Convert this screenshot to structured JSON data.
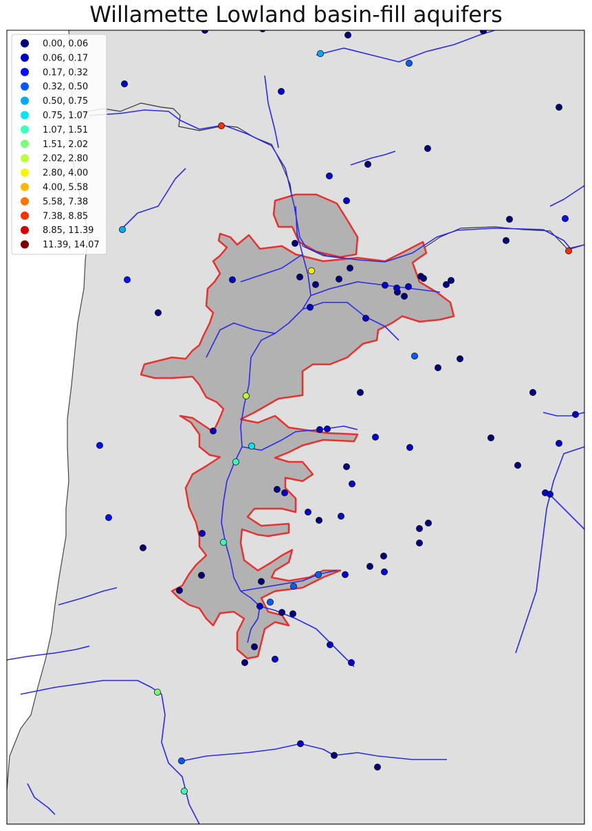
{
  "title": "Willamette Lowland basin-fill aquifers",
  "legend": {
    "bins": [
      {
        "label": "0.00,  0.06",
        "color": "#00007f"
      },
      {
        "label": "0.06,  0.17",
        "color": "#0000c8"
      },
      {
        "label": "0.17,  0.32",
        "color": "#0010ff"
      },
      {
        "label": "0.32,  0.50",
        "color": "#005cff"
      },
      {
        "label": "0.50,  0.75",
        "color": "#00a8ff"
      },
      {
        "label": "0.75,  1.07",
        "color": "#00e4f8"
      },
      {
        "label": "1.07,  1.51",
        "color": "#3cffba"
      },
      {
        "label": "1.51,  2.02",
        "color": "#7cff7a"
      },
      {
        "label": "2.02,  2.80",
        "color": "#baff3c"
      },
      {
        "label": "2.80,  4.00",
        "color": "#f8f500"
      },
      {
        "label": "4.00,  5.58",
        "color": "#ffb700"
      },
      {
        "label": "5.58,  7.38",
        "color": "#ff7300"
      },
      {
        "label": "7.38,  8.85",
        "color": "#ff3000"
      },
      {
        "label": "8.85, 11.39",
        "color": "#d40000"
      },
      {
        "label": "11.39, 14.07",
        "color": "#7f0000"
      }
    ]
  },
  "colors": {
    "land": "#dfdfdf",
    "aquifer_fill": "#b2b2b2",
    "aquifer_outline": "#e8302e",
    "rivers": "#2a2ae8",
    "coast": "#444444"
  },
  "sites_by_bin": [
    [
      [
        298,
        44
      ],
      [
        382,
        42
      ],
      [
        506,
        51
      ],
      [
        703,
        45
      ],
      [
        813,
        156
      ],
      [
        622,
        216
      ],
      [
        535,
        239
      ],
      [
        741,
        319
      ],
      [
        736,
        350
      ],
      [
        230,
        455
      ],
      [
        436,
        403
      ],
      [
        493,
        406
      ],
      [
        509,
        390
      ],
      [
        429,
        354
      ],
      [
        459,
        414
      ],
      [
        578,
        425
      ],
      [
        588,
        431
      ],
      [
        649,
        414
      ],
      [
        656,
        408
      ],
      [
        612,
        402
      ],
      [
        616,
        405
      ],
      [
        669,
        522
      ],
      [
        637,
        535
      ],
      [
        524,
        571
      ],
      [
        775,
        571
      ],
      [
        714,
        637
      ],
      [
        753,
        677
      ],
      [
        504,
        679
      ],
      [
        464,
        757
      ],
      [
        610,
        769
      ],
      [
        623,
        761
      ],
      [
        610,
        790
      ],
      [
        558,
        809
      ],
      [
        538,
        824
      ],
      [
        208,
        797
      ],
      [
        261,
        859
      ],
      [
        426,
        893
      ],
      [
        410,
        891
      ],
      [
        356,
        964
      ],
      [
        370,
        941
      ],
      [
        549,
        1116
      ],
      [
        486,
        1099
      ],
      [
        293,
        837
      ],
      [
        380,
        846
      ],
      [
        403,
        712
      ]
    ],
    [
      [
        181,
        122
      ],
      [
        409,
        133
      ],
      [
        479,
        256
      ],
      [
        504,
        292
      ],
      [
        338,
        407
      ],
      [
        451,
        447
      ],
      [
        532,
        463
      ],
      [
        594,
        417
      ],
      [
        577,
        419
      ],
      [
        560,
        415
      ],
      [
        465,
        625
      ],
      [
        476,
        624
      ],
      [
        310,
        627
      ],
      [
        546,
        636
      ],
      [
        596,
        651
      ],
      [
        512,
        704
      ],
      [
        496,
        751
      ],
      [
        448,
        745
      ],
      [
        294,
        776
      ],
      [
        502,
        836
      ],
      [
        559,
        832
      ],
      [
        378,
        882
      ],
      [
        400,
        959
      ],
      [
        480,
        938
      ],
      [
        511,
        964
      ],
      [
        437,
        1082
      ],
      [
        837,
        603
      ],
      [
        813,
        645
      ],
      [
        793,
        717
      ],
      [
        800,
        719
      ],
      [
        414,
        717
      ]
    ],
    [
      [
        185,
        407
      ],
      [
        145,
        648
      ],
      [
        158,
        753
      ],
      [
        822,
        318
      ]
    ],
    [
      [
        595,
        92
      ],
      [
        603,
        518
      ],
      [
        463,
        836
      ],
      [
        427,
        853
      ],
      [
        393,
        876
      ],
      [
        264,
        1107
      ]
    ],
    [
      [
        466,
        78
      ],
      [
        178,
        334
      ]
    ],
    [
      [
        366,
        649
      ]
    ],
    [
      [
        343,
        672
      ],
      [
        325,
        789
      ],
      [
        268,
        1151
      ]
    ],
    [
      [
        229,
        1007
      ]
    ],
    [
      [
        358,
        576
      ]
    ],
    [
      [
        453,
        394
      ]
    ],
    [],
    [],
    [
      [
        322,
        183
      ],
      [
        827,
        365
      ]
    ],
    [],
    []
  ]
}
